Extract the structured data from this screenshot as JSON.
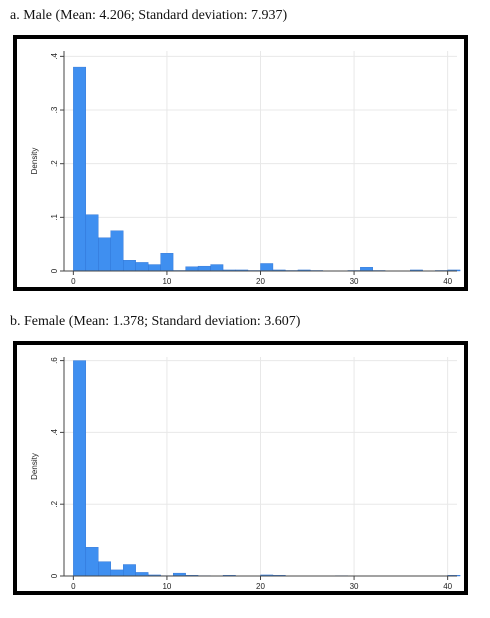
{
  "panels": [
    {
      "title": "a. Male (Mean: 4.206; Standard deviation: 7.937)"
    },
    {
      "title": "b. Female (Mean: 1.378; Standard deviation: 3.607)"
    }
  ],
  "chart_data": [
    {
      "type": "bar",
      "subtype": "histogram",
      "title": "a. Male (Mean: 4.206; Standard deviation: 7.937)",
      "ylabel": "Density",
      "xlabel": "",
      "xlim": [
        -1,
        41
      ],
      "ylim": [
        0,
        0.41
      ],
      "xticks": [
        0,
        10,
        20,
        30,
        40
      ],
      "xtick_labels": [
        "0",
        "10",
        "20",
        "30",
        "40"
      ],
      "yticks": [
        0,
        0.1,
        0.2,
        0.3,
        0.4
      ],
      "ytick_labels": [
        "0",
        ".1",
        ".2",
        ".3",
        ".4"
      ],
      "grid": true,
      "bar_color": "#3f8ff0",
      "bin_width": 1.33,
      "bins": [
        {
          "x": 0.0,
          "density": 0.38
        },
        {
          "x": 1.33,
          "density": 0.105
        },
        {
          "x": 2.67,
          "density": 0.062
        },
        {
          "x": 4.0,
          "density": 0.075
        },
        {
          "x": 5.33,
          "density": 0.02
        },
        {
          "x": 6.67,
          "density": 0.016
        },
        {
          "x": 8.0,
          "density": 0.012
        },
        {
          "x": 9.33,
          "density": 0.033
        },
        {
          "x": 10.67,
          "density": 0.001
        },
        {
          "x": 12.0,
          "density": 0.008
        },
        {
          "x": 13.33,
          "density": 0.009
        },
        {
          "x": 14.67,
          "density": 0.012
        },
        {
          "x": 16.0,
          "density": 0.002
        },
        {
          "x": 17.33,
          "density": 0.002
        },
        {
          "x": 18.67,
          "density": 0.001
        },
        {
          "x": 20.0,
          "density": 0.014
        },
        {
          "x": 21.33,
          "density": 0.002
        },
        {
          "x": 22.67,
          "density": 0.001
        },
        {
          "x": 24.0,
          "density": 0.002
        },
        {
          "x": 25.33,
          "density": 0.001
        },
        {
          "x": 29.33,
          "density": 0.001
        },
        {
          "x": 30.67,
          "density": 0.007
        },
        {
          "x": 32.0,
          "density": 0.001
        },
        {
          "x": 36.0,
          "density": 0.002
        },
        {
          "x": 38.67,
          "density": 0.001
        },
        {
          "x": 40.0,
          "density": 0.002
        }
      ]
    },
    {
      "type": "bar",
      "subtype": "histogram",
      "title": "b. Female (Mean: 1.378; Standard deviation: 3.607)",
      "ylabel": "Density",
      "xlabel": "",
      "xlim": [
        -1,
        41
      ],
      "ylim": [
        0,
        0.61
      ],
      "xticks": [
        0,
        10,
        20,
        30,
        40
      ],
      "xtick_labels": [
        "0",
        "10",
        "20",
        "30",
        "40"
      ],
      "yticks": [
        0,
        0.2,
        0.4,
        0.6
      ],
      "ytick_labels": [
        "0",
        ".2",
        ".4",
        ".6"
      ],
      "grid": true,
      "bar_color": "#3f8ff0",
      "bin_width": 1.33,
      "bins": [
        {
          "x": 0.0,
          "density": 0.6
        },
        {
          "x": 1.33,
          "density": 0.08
        },
        {
          "x": 2.67,
          "density": 0.04
        },
        {
          "x": 4.0,
          "density": 0.017
        },
        {
          "x": 5.33,
          "density": 0.032
        },
        {
          "x": 6.67,
          "density": 0.01
        },
        {
          "x": 8.0,
          "density": 0.003
        },
        {
          "x": 9.33,
          "density": 0.001
        },
        {
          "x": 10.67,
          "density": 0.008
        },
        {
          "x": 12.0,
          "density": 0.002
        },
        {
          "x": 13.33,
          "density": 0.001
        },
        {
          "x": 16.0,
          "density": 0.002
        },
        {
          "x": 20.0,
          "density": 0.003
        },
        {
          "x": 21.33,
          "density": 0.002
        },
        {
          "x": 28.0,
          "density": 0.001
        },
        {
          "x": 40.0,
          "density": 0.002
        }
      ]
    }
  ]
}
